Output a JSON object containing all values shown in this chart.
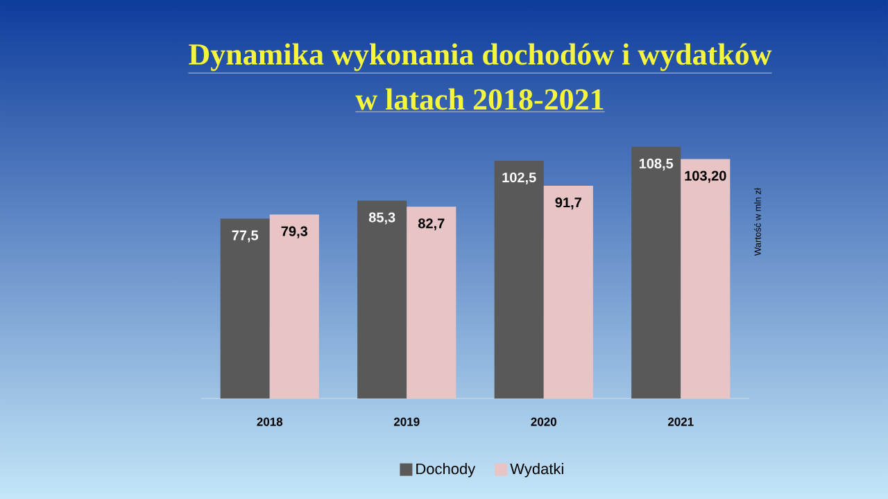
{
  "chart_data": {
    "type": "bar",
    "title": "Dynamika wykonania dochodów i wydatków",
    "subtitle": "w latach 2018-2021",
    "ylabel": "Wartość w mln zł",
    "categories": [
      "2018",
      "2019",
      "2020",
      "2021"
    ],
    "series": [
      {
        "name": "Dochody",
        "color": "#595959",
        "values": [
          77.5,
          85.3,
          102.5,
          108.5
        ],
        "value_labels": [
          "77,5",
          "85,3",
          "102,5",
          "108,5"
        ]
      },
      {
        "name": "Wydatki",
        "color": "#e8c4c4",
        "values": [
          79.3,
          82.7,
          91.7,
          103.2
        ],
        "value_labels": [
          "79,3",
          "82,7",
          "91,7",
          "103,20"
        ]
      }
    ],
    "legend": "bottom"
  }
}
